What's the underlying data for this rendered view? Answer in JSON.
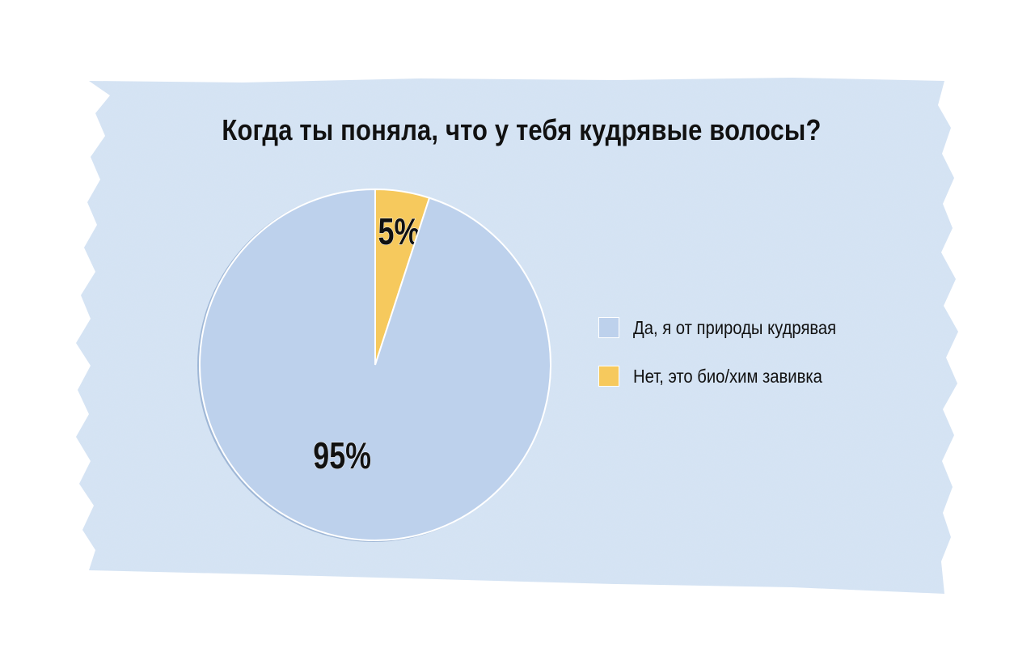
{
  "colors": {
    "paper": "#d6e4f4",
    "yes": "#bdd1ec",
    "no": "#f6c95d",
    "text": "#111111"
  },
  "chart_data": {
    "type": "pie",
    "title": "Когда ты поняла, что у тебя кудрявые волосы?",
    "slices": [
      {
        "label": "Нет, это био/хим завивка",
        "value": 5,
        "display": "5%",
        "color": "#f6c95d"
      },
      {
        "label": "Да, я от природы кудрявая",
        "value": 95,
        "display": "95%",
        "color": "#bdd1ec"
      }
    ],
    "start_angle_deg": 0,
    "direction": "clockwise",
    "legend": {
      "placement": "right",
      "items": [
        {
          "label": "Да, я от природы кудрявая",
          "color": "#bdd1ec"
        },
        {
          "label": "Нет, это био/хим завивка",
          "color": "#f6c95d"
        }
      ]
    }
  }
}
